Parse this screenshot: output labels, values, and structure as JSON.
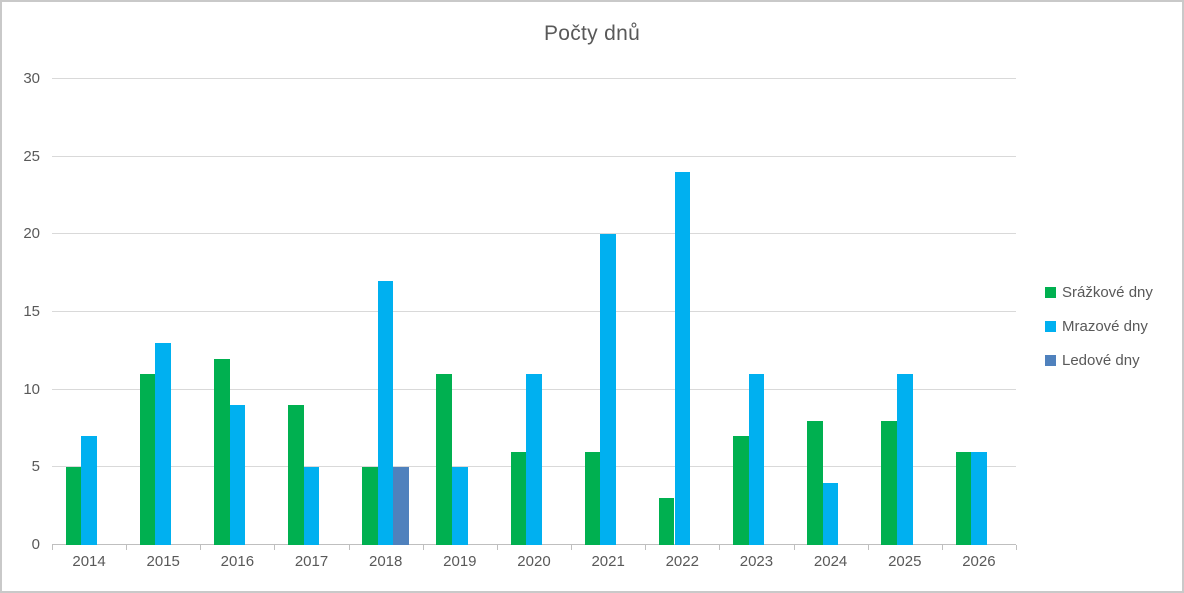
{
  "chart_data": {
    "type": "bar",
    "title": "Počty dnů",
    "categories": [
      "2014",
      "2015",
      "2016",
      "2017",
      "2018",
      "2019",
      "2020",
      "2021",
      "2022",
      "2023",
      "2024",
      "2025",
      "2026"
    ],
    "series": [
      {
        "name": "Srážkové dny",
        "color": "#00B050",
        "values": [
          5,
          11,
          12,
          9,
          5,
          11,
          6,
          6,
          3,
          7,
          8,
          8,
          6
        ]
      },
      {
        "name": "Mrazové dny",
        "color": "#00B0F0",
        "values": [
          7,
          13,
          9,
          5,
          17,
          5,
          11,
          20,
          24,
          11,
          4,
          11,
          6
        ]
      },
      {
        "name": "Ledové dny",
        "color": "#4F81BD",
        "values": [
          0,
          0,
          0,
          0,
          5,
          0,
          0,
          0,
          0,
          0,
          0,
          0,
          0
        ]
      }
    ],
    "ylim": [
      0,
      30
    ],
    "y_ticks": [
      0,
      5,
      10,
      15,
      20,
      25,
      30
    ],
    "grid": true,
    "legend_position": "right"
  },
  "colors": {
    "grid": "#D9D9D9",
    "axis": "#BFBFBF",
    "text": "#595959",
    "frame_border": "#C9C9C9",
    "background": "#FFFFFF"
  }
}
